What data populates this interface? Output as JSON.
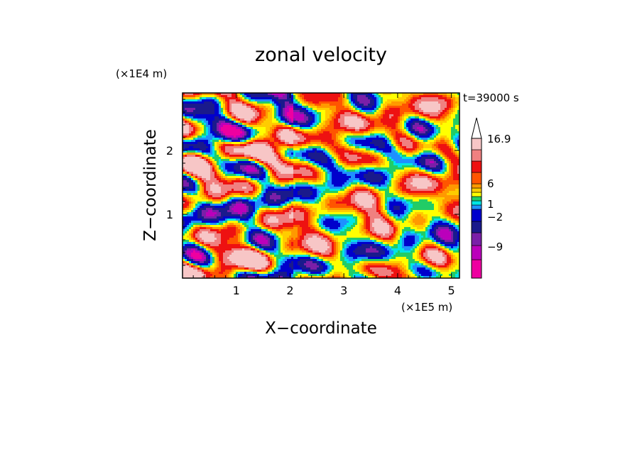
{
  "chart_data": {
    "type": "heatmap",
    "title": "zonal velocity",
    "xlabel": "X−coordinate",
    "ylabel": "Z−coordinate",
    "x_unit": "(×1E5 m)",
    "y_unit": "(×1E4 m)",
    "time_label": "t=39000 s",
    "xlim": [
      0,
      5.15
    ],
    "ylim": [
      0,
      2.9
    ],
    "x_ticks": [
      1,
      2,
      3,
      4,
      5
    ],
    "y_ticks": [
      1,
      2
    ],
    "colorbar": {
      "tick_labels": [
        "16.9",
        "6",
        "1",
        "−2",
        "−9"
      ],
      "colors": [
        "#ee00a0",
        "#bb00bb",
        "#7a1fa8",
        "#1a1a8c",
        "#0000cc",
        "#1e90ff",
        "#00e5e5",
        "#22cc66",
        "#ffff00",
        "#ffcc00",
        "#ff9900",
        "#ff5500",
        "#ee1111",
        "#f08080",
        "#f7c6c6"
      ]
    }
  }
}
